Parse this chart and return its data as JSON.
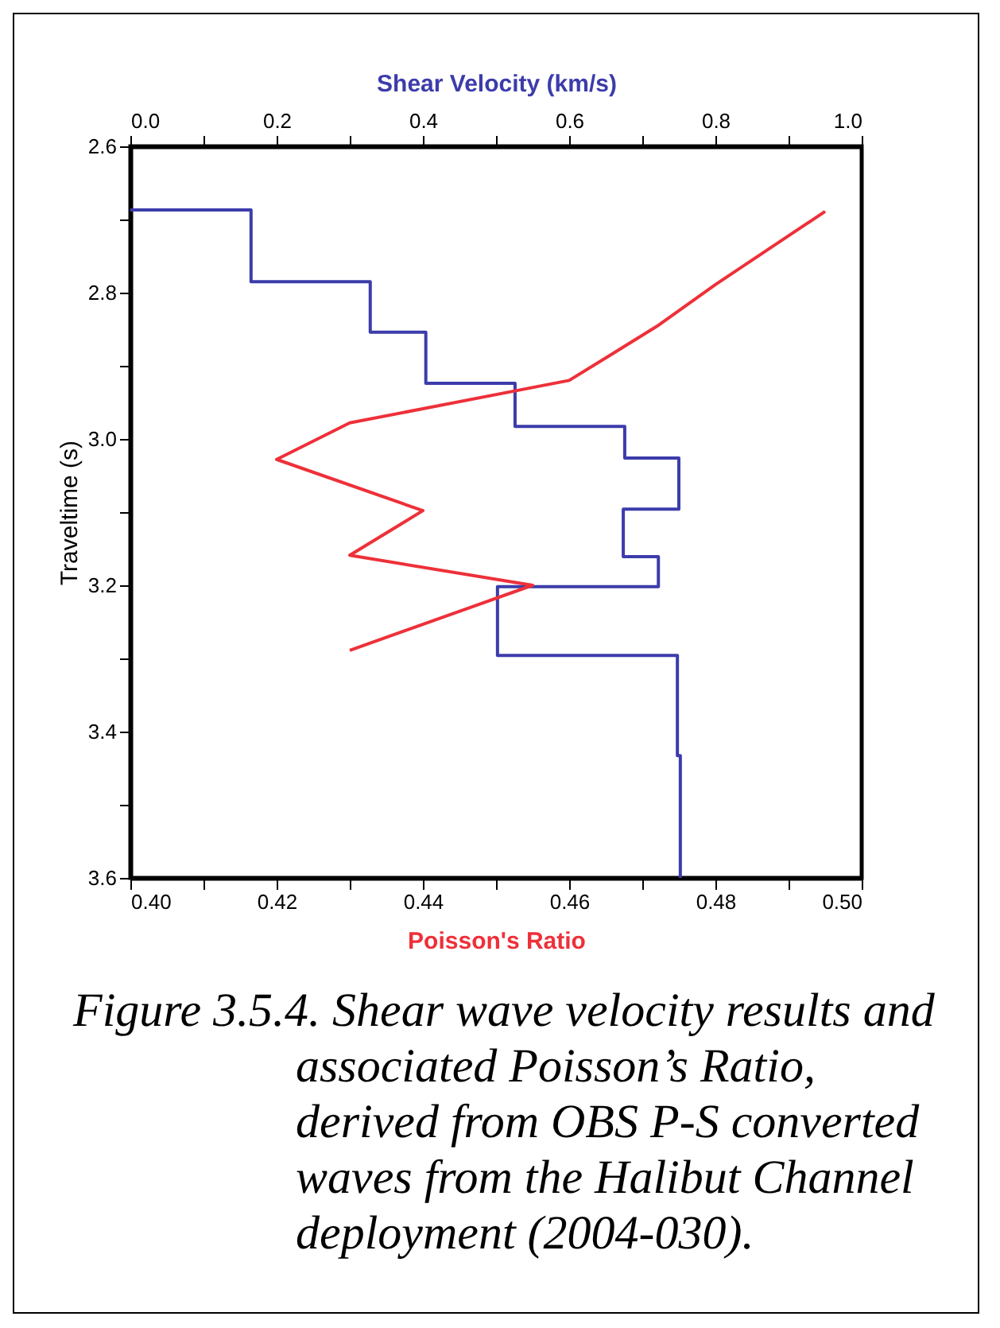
{
  "chart_data": {
    "type": "line",
    "x2label": "Shear Velocity (km/s)",
    "xlabel": "Poisson's Ratio",
    "ylabel": "Traveltime (s)",
    "annotations": [
      "Figure 3.5.4.  Shear wave velocity results and associated Poisson’s Ratio, derived from OBS P-S converted waves from the Halibut Channel deployment (2004-030)."
    ],
    "series": [
      {
        "color": "#3c3cab",
        "axis": "x2",
        "x": [
          0,
          0.165,
          0.165,
          0.328,
          0.328,
          0.404,
          0.404,
          0.526,
          0.526,
          0.676,
          0.676,
          0.75,
          0.75,
          0.674,
          0.674,
          0.722,
          0.722,
          0.502,
          0.502,
          0.748,
          0.748,
          0.752,
          0.752
        ],
        "values": [
          2.687,
          2.687,
          2.785,
          2.785,
          2.854,
          2.854,
          2.924,
          2.924,
          2.983,
          2.983,
          3.026,
          3.026,
          3.096,
          3.096,
          3.161,
          3.161,
          3.202,
          3.202,
          3.296,
          3.296,
          3.433,
          3.433,
          3.6
        ]
      },
      {
        "color": "#ee3039",
        "x": [
          0.495,
          0.48,
          0.472,
          0.46,
          0.43,
          0.42,
          0.44,
          0.43,
          0.455,
          0.43
        ],
        "values": [
          2.689,
          2.789,
          2.846,
          2.92,
          2.978,
          3.028,
          3.098,
          3.159,
          3.2,
          3.289
        ]
      }
    ],
    "xlim": [
      0.4,
      0.5
    ],
    "xticks": [
      {
        "value": 0.4,
        "label": "0.40"
      },
      {
        "value": 0.41,
        "label": null
      },
      {
        "value": 0.42,
        "label": "0.42"
      },
      {
        "value": 0.43,
        "label": null
      },
      {
        "value": 0.44,
        "label": "0.44"
      },
      {
        "value": 0.45,
        "label": null
      },
      {
        "value": 0.46,
        "label": "0.46"
      },
      {
        "value": 0.47,
        "label": null
      },
      {
        "value": 0.48,
        "label": "0.48"
      },
      {
        "value": 0.49,
        "label": null
      },
      {
        "value": 0.5,
        "label": "0.50"
      }
    ],
    "x2lim": [
      0,
      1
    ],
    "x2ticks": [
      {
        "value": 0,
        "label": "0.0"
      },
      {
        "value": 0.1,
        "label": null
      },
      {
        "value": 0.2,
        "label": "0.2"
      },
      {
        "value": 0.3,
        "label": null
      },
      {
        "value": 0.4,
        "label": "0.4"
      },
      {
        "value": 0.5,
        "label": null
      },
      {
        "value": 0.6,
        "label": "0.6"
      },
      {
        "value": 0.7,
        "label": null
      },
      {
        "value": 0.8,
        "label": "0.8"
      },
      {
        "value": 0.9,
        "label": null
      },
      {
        "value": 1,
        "label": "1.0"
      }
    ],
    "ylim": [
      3.6,
      2.6
    ],
    "yticks": [
      {
        "value": 2.6,
        "label": "2.6"
      },
      {
        "value": 2.7,
        "label": null
      },
      {
        "value": 2.8,
        "label": "2.8"
      },
      {
        "value": 2.9,
        "label": null
      },
      {
        "value": 3,
        "label": "3.0"
      },
      {
        "value": 3.1,
        "label": null
      },
      {
        "value": 3.2,
        "label": "3.2"
      },
      {
        "value": 3.3,
        "label": null
      },
      {
        "value": 3.4,
        "label": "3.4"
      },
      {
        "value": 3.5,
        "label": null
      },
      {
        "value": 3.6,
        "label": "3.6"
      }
    ],
    "grid": false
  }
}
